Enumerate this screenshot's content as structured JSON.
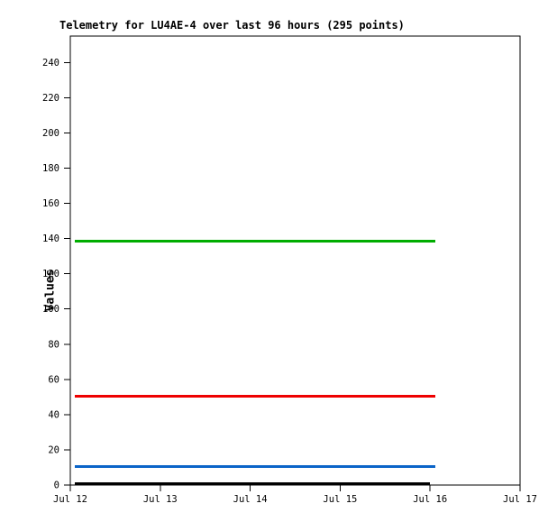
{
  "chart_data": {
    "type": "line",
    "title": "Telemetry for LU4AE-4 over last 96 hours (295 points)",
    "ylabel": "Values",
    "xlabel": "",
    "ylim": [
      0,
      255
    ],
    "y_ticks": [
      0,
      20,
      40,
      60,
      80,
      100,
      120,
      140,
      160,
      180,
      200,
      220,
      240
    ],
    "x_ticks": [
      {
        "label": "Jul 12",
        "day": 0
      },
      {
        "label": "Jul 13",
        "day": 1
      },
      {
        "label": "Jul 14",
        "day": 2
      },
      {
        "label": "Jul 15",
        "day": 3
      },
      {
        "label": "Jul 16",
        "day": 4
      },
      {
        "label": "Jul 17",
        "day": 5
      }
    ],
    "xlim_days": [
      0,
      5
    ],
    "grid": false,
    "legend": "none",
    "axis_color": "#000000",
    "background_color": "#ffffff",
    "series": [
      {
        "name": "series-green",
        "color": "#00ad00",
        "value": 138.4,
        "x_start_day": 0.05,
        "x_end_day": 4.06,
        "width": 3
      },
      {
        "name": "series-red",
        "color": "#ee0000",
        "value": 50.4,
        "x_start_day": 0.05,
        "x_end_day": 4.06,
        "width": 3
      },
      {
        "name": "series-blue",
        "color": "#0a64c8",
        "value": 10.5,
        "x_start_day": 0.05,
        "x_end_day": 4.06,
        "width": 3
      },
      {
        "name": "series-black",
        "color": "#000000",
        "value": 0,
        "x_start_day": 0.05,
        "x_end_day": 4.0,
        "width": 3.5
      }
    ]
  }
}
